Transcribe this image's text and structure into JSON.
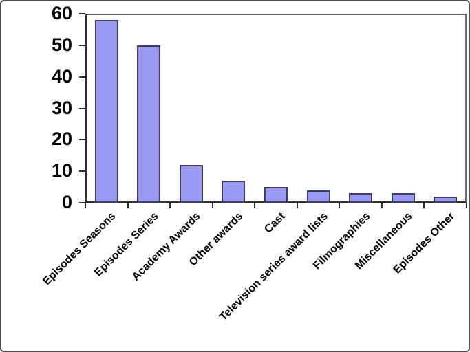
{
  "chart_data": {
    "type": "bar",
    "categories": [
      "Episodes Seasons",
      "Episodes Series",
      "Academy Awards",
      "Other awards",
      "Cast",
      "Television series award lists",
      "Filmographies",
      "Miscellaneous",
      "Episodes Other"
    ],
    "values": [
      58,
      50,
      12,
      7,
      5,
      4,
      3,
      3,
      2
    ],
    "title": "",
    "xlabel": "",
    "ylabel": "",
    "ylim": [
      0,
      60
    ],
    "ytick_step": 10,
    "grid": false,
    "legend": false,
    "x_label_rotation_deg": 45,
    "colors": {
      "bar_fill": "#9a9af5",
      "bar_border": "#3d3d62",
      "axis": "#2f2f2f",
      "plot_border": "#6a6a6a",
      "frame_border": "#4f4f4f",
      "text": "#000000",
      "background": "#ffffff"
    }
  }
}
